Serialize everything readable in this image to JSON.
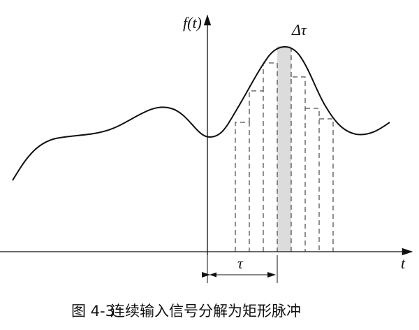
{
  "axis_labels": {
    "y": "f(t)",
    "x": "t"
  },
  "annotations": {
    "delta_tau": "Δτ",
    "tau": "τ"
  },
  "caption": {
    "number": "图 4-3",
    "text": "连续输入信号分解为矩形脉冲"
  }
}
